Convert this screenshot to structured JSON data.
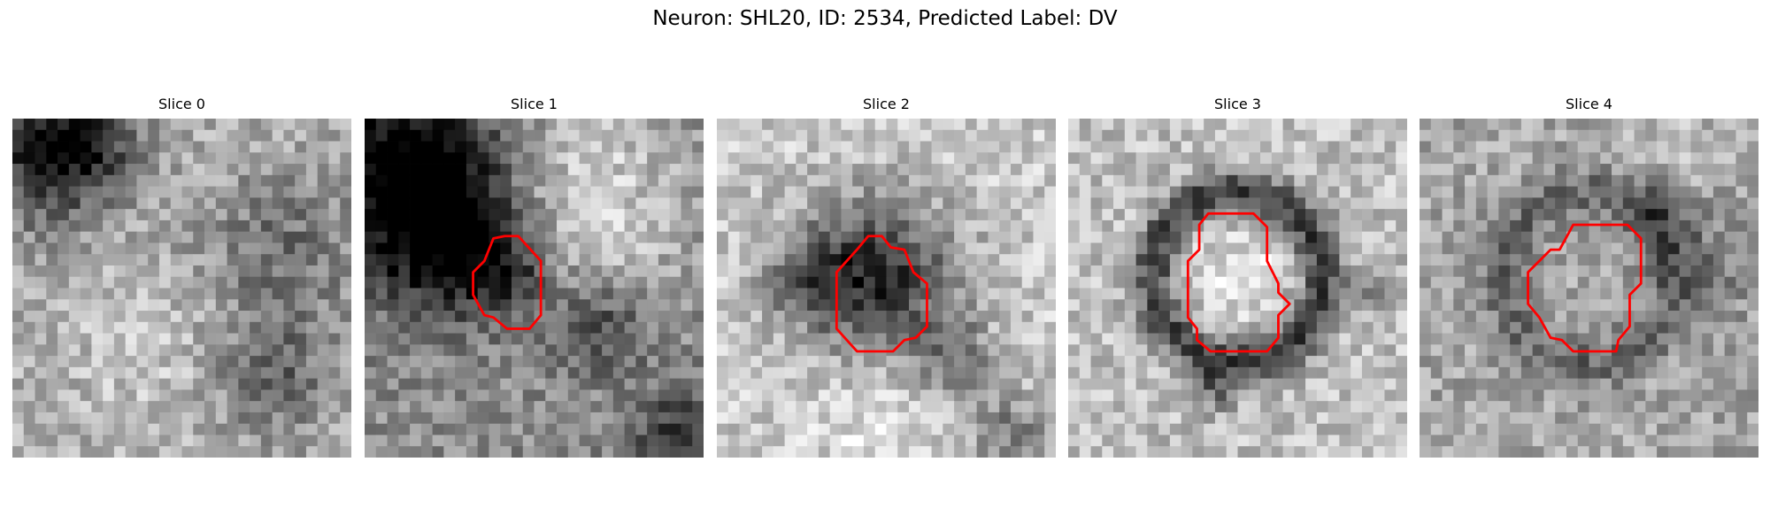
{
  "figure": {
    "title": "Neuron: SHL20, ID: 2534, Predicted Label: DV"
  },
  "panels": [
    {
      "title": "Slice 0",
      "pattern": "dark-top-left-texture",
      "contour": []
    },
    {
      "title": "Slice 1",
      "pattern": "dark-left-bright-right",
      "contour": [
        [
          12.4,
          10.4
        ],
        [
          13.6,
          10.4
        ],
        [
          15.6,
          12.6
        ],
        [
          15.6,
          17.4
        ],
        [
          14.6,
          18.6
        ],
        [
          12.6,
          18.6
        ],
        [
          11.4,
          17.6
        ],
        [
          10.6,
          17.4
        ],
        [
          9.6,
          15.6
        ],
        [
          9.6,
          13.6
        ],
        [
          10.6,
          12.6
        ],
        [
          11.4,
          10.6
        ]
      ]
    },
    {
      "title": "Slice 2",
      "pattern": "dark-blob-center",
      "contour": [
        [
          13.4,
          10.4
        ],
        [
          14.6,
          10.4
        ],
        [
          15.4,
          11.4
        ],
        [
          16.6,
          11.6
        ],
        [
          17.4,
          13.6
        ],
        [
          18.6,
          14.6
        ],
        [
          18.6,
          18.4
        ],
        [
          17.6,
          19.4
        ],
        [
          16.6,
          19.6
        ],
        [
          15.6,
          20.6
        ],
        [
          12.4,
          20.6
        ],
        [
          10.6,
          18.6
        ],
        [
          10.6,
          13.6
        ],
        [
          12.4,
          11.6
        ]
      ]
    },
    {
      "title": "Slice 3",
      "pattern": "dark-ring-bright-center",
      "contour": [
        [
          12.4,
          8.4
        ],
        [
          16.4,
          8.4
        ],
        [
          17.6,
          9.6
        ],
        [
          17.6,
          12.6
        ],
        [
          18.6,
          14.6
        ],
        [
          18.6,
          15.4
        ],
        [
          19.6,
          16.4
        ],
        [
          18.6,
          17.4
        ],
        [
          18.6,
          19.4
        ],
        [
          17.6,
          20.6
        ],
        [
          12.6,
          20.6
        ],
        [
          11.4,
          19.6
        ],
        [
          11.4,
          18.6
        ],
        [
          10.6,
          17.6
        ],
        [
          10.6,
          12.6
        ],
        [
          11.6,
          11.6
        ],
        [
          11.6,
          9.4
        ]
      ]
    },
    {
      "title": "Slice 4",
      "pattern": "faint-ring-texture",
      "contour": [
        [
          13.6,
          9.4
        ],
        [
          18.4,
          9.4
        ],
        [
          19.6,
          10.6
        ],
        [
          19.6,
          14.6
        ],
        [
          18.6,
          15.6
        ],
        [
          18.6,
          18.4
        ],
        [
          17.6,
          19.6
        ],
        [
          17.4,
          20.6
        ],
        [
          13.6,
          20.6
        ],
        [
          12.6,
          19.6
        ],
        [
          11.6,
          19.4
        ],
        [
          10.6,
          17.6
        ],
        [
          9.6,
          16.4
        ],
        [
          9.6,
          13.6
        ],
        [
          10.6,
          12.6
        ],
        [
          11.6,
          11.6
        ],
        [
          12.4,
          11.6
        ]
      ]
    }
  ],
  "style": {
    "contour_color": "#ff0000",
    "colormap": "gray"
  }
}
